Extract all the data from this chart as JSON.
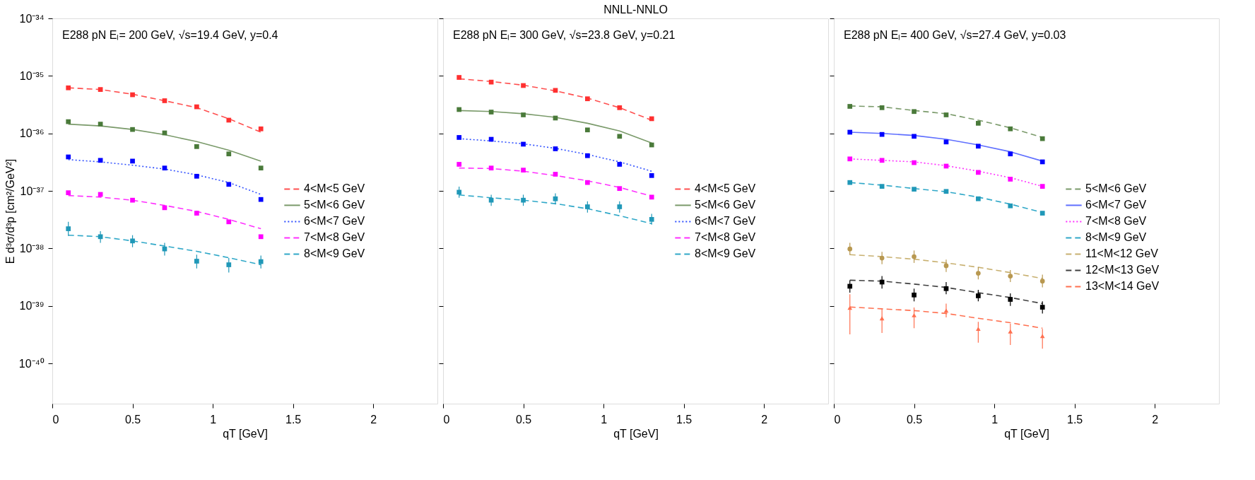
{
  "chart_data": [
    {
      "type": "line",
      "annotations": [
        "E288 pN Eₗ= 200 GeV, √s=19.4 GeV, y=0.4"
      ],
      "xlabel": "qT [GeV]",
      "ylabel": "E d³σ/d³p [cm²/GeV²]",
      "log": true,
      "legend": "right",
      "xlim": [
        0,
        2.4
      ],
      "xticks": [
        0,
        0.5,
        1,
        1.5,
        2
      ],
      "ylim": [
        2e-41,
        1e-34
      ],
      "yticks": [
        {
          "value": 1e-34,
          "label": "10⁻³⁴"
        },
        {
          "value": 1e-35,
          "label": "10⁻³⁵"
        },
        {
          "value": 1e-36,
          "label": "10⁻³⁶"
        },
        {
          "value": 1e-37,
          "label": "10⁻³⁷"
        },
        {
          "value": 1e-38,
          "label": "10⁻³⁸"
        },
        {
          "value": 1e-39,
          "label": "10⁻³⁹"
        },
        {
          "value": 1e-40,
          "label": "10⁻⁴⁰"
        }
      ],
      "x": [
        0.1,
        0.3,
        0.5,
        0.7,
        0.9,
        1.1,
        1.3
      ],
      "series": [
        {
          "name": "4<M<5 GeV",
          "type": "line",
          "color": "#ff5050",
          "line_style": "dashed",
          "values": [
            6.2e-36,
            5.8e-36,
            4.8e-36,
            3.7e-36,
            2.8e-36,
            1.8e-36,
            1.05e-36
          ]
        },
        {
          "name": "5<M<6 GeV",
          "type": "line",
          "color": "#7a9a6a",
          "line_style": "solid",
          "values": [
            1.45e-36,
            1.35e-36,
            1.17e-36,
            9.5e-37,
            7.2e-37,
            5.1e-37,
            3.3e-37
          ]
        },
        {
          "name": "6<M<7 GeV",
          "type": "line",
          "color": "#3050ff",
          "line_style": "dotted",
          "values": [
            3.5e-37,
            3.2e-37,
            2.8e-37,
            2.4e-37,
            1.9e-37,
            1.4e-37,
            8.7e-38
          ]
        },
        {
          "name": "7<M<8 GeV",
          "type": "line",
          "color": "#ff30ff",
          "line_style": "dashed",
          "values": [
            8.3e-38,
            7.8e-38,
            6.9e-38,
            5.6e-38,
            4.4e-38,
            3.2e-38,
            2.2e-38
          ]
        },
        {
          "name": "8<M<9 GeV",
          "type": "line",
          "color": "#30a8c8",
          "line_style": "dashed",
          "values": [
            1.7e-38,
            1.6e-38,
            1.35e-38,
            1.1e-38,
            8.9e-39,
            6.9e-39,
            5.2e-39
          ]
        },
        {
          "type": "scatter",
          "color": "#ff3030",
          "marker": "square",
          "values": [
            6.2e-36,
            5.8e-36,
            4.7e-36,
            3.7e-36,
            2.9e-36,
            1.7e-36,
            1.2e-36
          ]
        },
        {
          "type": "scatter",
          "color": "#4a7a3a",
          "marker": "square",
          "values": [
            1.6e-36,
            1.45e-36,
            1.17e-36,
            1.02e-36,
            5.9e-37,
            4.4e-37,
            2.5e-37
          ]
        },
        {
          "type": "scatter",
          "color": "#0000ff",
          "marker": "square",
          "values": [
            3.9e-37,
            3.4e-37,
            3.3e-37,
            2.5e-37,
            1.8e-37,
            1.3e-37,
            7.1e-38
          ]
        },
        {
          "type": "scatter",
          "color": "#ff00ff",
          "marker": "square",
          "values": [
            9.3e-38,
            8.7e-38,
            6.9e-38,
            5.1e-38,
            4.1e-38,
            2.9e-38,
            1.6e-38
          ]
        },
        {
          "type": "scatter",
          "color": "#2098b8",
          "marker": "square",
          "values": [
            2.2e-38,
            1.6e-38,
            1.35e-38,
            9.8e-39,
            6e-39,
            5.2e-39,
            5.9e-39
          ],
          "errors": [
            [
              1.65e-38,
              2.9e-38
            ],
            [
              1.25e-38,
              2e-38
            ],
            [
              1.05e-38,
              1.7e-38
            ],
            [
              7.5e-39,
              1.25e-38
            ],
            [
              4.5e-39,
              7.8e-39
            ],
            [
              3.8e-39,
              6.8e-39
            ],
            [
              4.5e-39,
              7.5e-39
            ]
          ]
        }
      ]
    },
    {
      "type": "line",
      "title": "NNLL-NNLO",
      "annotations": [
        "E288 pN Eₗ= 300 GeV, √s=23.8 GeV, y=0.21"
      ],
      "xlabel": "qT [GeV]",
      "log": true,
      "legend": "right",
      "tick_labels": "x",
      "xlim": [
        0,
        2.4
      ],
      "xticks": [
        0,
        0.5,
        1,
        1.5,
        2
      ],
      "ylim": [
        2e-41,
        1e-34
      ],
      "yticks": [
        {
          "value": 1e-34,
          "label": null
        },
        {
          "value": 1e-35,
          "label": null
        },
        {
          "value": 1e-36,
          "label": null
        },
        {
          "value": 1e-37,
          "label": null
        },
        {
          "value": 1e-38,
          "label": null
        },
        {
          "value": 1e-39,
          "label": null
        },
        {
          "value": 1e-40,
          "label": null
        }
      ],
      "x": [
        0.1,
        0.3,
        0.5,
        0.7,
        0.9,
        1.1,
        1.3
      ],
      "series": [
        {
          "name": "4<M<5 GeV",
          "type": "line",
          "color": "#ff5050",
          "line_style": "dashed",
          "values": [
            8.9e-36,
            8e-36,
            6.9e-36,
            5.5e-36,
            4.1e-36,
            2.8e-36,
            1.7e-36
          ]
        },
        {
          "name": "5<M<6 GeV",
          "type": "line",
          "color": "#7a9a6a",
          "line_style": "solid",
          "values": [
            2.5e-36,
            2.4e-36,
            2.2e-36,
            1.9e-36,
            1.5e-36,
            1.1e-36,
            6.8e-37
          ]
        },
        {
          "name": "6<M<7 GeV",
          "type": "line",
          "color": "#3050ff",
          "line_style": "dotted",
          "values": [
            8.1e-37,
            7.4e-37,
            6.6e-37,
            5.5e-37,
            4.3e-37,
            3.2e-37,
            2.2e-37
          ]
        },
        {
          "name": "7<M<8 GeV",
          "type": "line",
          "color": "#ff30ff",
          "line_style": "dashed",
          "values": [
            2.5e-37,
            2.45e-37,
            2.2e-37,
            1.85e-37,
            1.5e-37,
            1.15e-37,
            8.1e-38
          ]
        },
        {
          "name": "8<M<9 GeV",
          "type": "line",
          "color": "#30a8c8",
          "line_style": "dashed",
          "values": [
            8.5e-38,
            7.6e-38,
            6.9e-38,
            6e-38,
            4.9e-38,
            3.7e-38,
            2.7e-38
          ]
        },
        {
          "type": "scatter",
          "color": "#ff3030",
          "marker": "square",
          "values": [
            9.4e-36,
            7.8e-36,
            6.8e-36,
            5.6e-36,
            4e-36,
            2.8e-36,
            1.8e-36
          ]
        },
        {
          "type": "scatter",
          "color": "#4a7a3a",
          "marker": "square",
          "values": [
            2.6e-36,
            2.35e-36,
            2.1e-36,
            1.85e-36,
            1.15e-36,
            8.9e-37,
            6.3e-37
          ]
        },
        {
          "type": "scatter",
          "color": "#0000ff",
          "marker": "square",
          "values": [
            8.5e-37,
            7.9e-37,
            6.5e-37,
            5.4e-37,
            4.1e-37,
            2.9e-37,
            1.85e-37
          ]
        },
        {
          "type": "scatter",
          "color": "#ff00ff",
          "marker": "square",
          "values": [
            2.9e-37,
            2.5e-37,
            2.3e-37,
            1.95e-37,
            1.4e-37,
            1.1e-37,
            7.8e-38
          ]
        },
        {
          "type": "scatter",
          "color": "#2098b8",
          "marker": "square",
          "values": [
            9.5e-38,
            6.9e-38,
            6.9e-38,
            7.3e-38,
            5.3e-38,
            5.3e-38,
            3.2e-38
          ],
          "errors": [
            [
              7.6e-38,
              1.19e-37
            ],
            [
              5.5e-38,
              8.6e-38
            ],
            [
              5.5e-38,
              8.6e-38
            ],
            [
              5.8e-38,
              9.1e-38
            ],
            [
              4.2e-38,
              6.6e-38
            ],
            [
              4.2e-38,
              6.6e-38
            ],
            [
              2.6e-38,
              4e-38
            ]
          ]
        }
      ]
    },
    {
      "type": "line",
      "annotations": [
        "E288 pN Eₗ= 400 GeV, √s=27.4 GeV, y=0.03"
      ],
      "xlabel": "qT [GeV]",
      "log": true,
      "legend": "right",
      "tick_labels": "x",
      "xlim": [
        0,
        2.4
      ],
      "xticks": [
        0,
        0.5,
        1,
        1.5,
        2
      ],
      "ylim": [
        2e-41,
        1e-34
      ],
      "yticks": [
        {
          "value": 1e-34,
          "label": null
        },
        {
          "value": 1e-35,
          "label": null
        },
        {
          "value": 1e-36,
          "label": null
        },
        {
          "value": 1e-37,
          "label": null
        },
        {
          "value": 1e-38,
          "label": null
        },
        {
          "value": 1e-39,
          "label": null
        },
        {
          "value": 1e-40,
          "label": null
        }
      ],
      "x": [
        0.1,
        0.3,
        0.5,
        0.7,
        0.9,
        1.1,
        1.3
      ],
      "series": [
        {
          "name": "5<M<6 GeV",
          "type": "line",
          "color": "#7a9a6a",
          "line_style": "dashed",
          "values": [
            3e-36,
            2.9e-36,
            2.5e-36,
            2.2e-36,
            1.7e-36,
            1.25e-36,
            8.5e-37
          ]
        },
        {
          "name": "6<M<7 GeV",
          "type": "line",
          "color": "#6070ff",
          "line_style": "solid",
          "values": [
            1.05e-36,
            1e-36,
            9.2e-37,
            7.9e-37,
            6.3e-37,
            4.8e-37,
            3.3e-37
          ]
        },
        {
          "name": "7<M<8 GeV",
          "type": "line",
          "color": "#ff30ff",
          "line_style": "dotted",
          "values": [
            3.6e-37,
            3.4e-37,
            3.2e-37,
            2.75e-37,
            2.2e-37,
            1.7e-37,
            1.2e-37
          ]
        },
        {
          "name": "8<M<9 GeV",
          "type": "line",
          "color": "#30a8c8",
          "line_style": "dashed",
          "values": [
            1.4e-37,
            1.26e-37,
            1.1e-37,
            9.7e-38,
            7.8e-38,
            5.9e-38,
            4.2e-38
          ]
        },
        {
          "name": "11<M<12 GeV",
          "type": "line",
          "color": "#c8b070",
          "line_style": "dashed",
          "values": [
            7.8e-39,
            7.2e-39,
            6.5e-39,
            5.6e-39,
            4.7e-39,
            3.8e-39,
            3e-39
          ]
        },
        {
          "name": "12<M<13 GeV",
          "type": "line",
          "color": "#404040",
          "line_style": "dashed",
          "values": [
            2.8e-39,
            2.7e-39,
            2.4e-39,
            2.1e-39,
            1.7e-39,
            1.4e-39,
            1.1e-39
          ]
        },
        {
          "name": "13<M<14 GeV",
          "type": "line",
          "color": "#ff7050",
          "line_style": "dashed",
          "values": [
            9.6e-40,
            8.9e-40,
            8.3e-40,
            7.4e-40,
            6.1e-40,
            5.1e-40,
            4.1e-40
          ]
        },
        {
          "type": "scatter",
          "color": "#4a7a3a",
          "marker": "square",
          "values": [
            2.95e-36,
            2.8e-36,
            2.4e-36,
            2.1e-36,
            1.5e-36,
            1.2e-36,
            8.1e-37
          ]
        },
        {
          "type": "scatter",
          "color": "#0000ff",
          "marker": "square",
          "values": [
            1.05e-36,
            9.6e-37,
            8.9e-37,
            7.1e-37,
            6e-37,
            4.4e-37,
            3.2e-37
          ]
        },
        {
          "type": "scatter",
          "color": "#ff00ff",
          "marker": "square",
          "values": [
            3.6e-37,
            3.4e-37,
            3.1e-37,
            2.7e-37,
            2.1e-37,
            1.6e-37,
            1.2e-37
          ]
        },
        {
          "type": "scatter",
          "color": "#2098b8",
          "marker": "square",
          "values": [
            1.4e-37,
            1.2e-37,
            1.07e-37,
            9.8e-38,
            7.3e-38,
            5.5e-38,
            4.1e-38
          ]
        },
        {
          "type": "scatter",
          "color": "#b89850",
          "marker": "circle",
          "values": [
            9.8e-39,
            6.8e-39,
            7.2e-39,
            5e-39,
            3.7e-39,
            3.3e-39,
            2.7e-39
          ],
          "errors": [
            [
              7.7e-39,
              1.25e-38
            ],
            [
              5.3e-39,
              8.7e-39
            ],
            [
              5.6e-39,
              9.2e-39
            ],
            [
              3.9e-39,
              6.4e-39
            ],
            [
              2.9e-39,
              4.7e-39
            ],
            [
              2.6e-39,
              4.2e-39
            ],
            [
              2.1e-39,
              3.5e-39
            ]
          ]
        },
        {
          "type": "scatter",
          "color": "#000000",
          "marker": "square",
          "values": [
            2.2e-39,
            2.6e-39,
            1.55e-39,
            2e-39,
            1.5e-39,
            1.3e-39,
            9.5e-40
          ],
          "errors": [
            [
              1.7e-39,
              2.8e-39
            ],
            [
              2e-39,
              3.3e-39
            ],
            [
              1.2e-39,
              2e-39
            ],
            [
              1.6e-39,
              2.6e-39
            ],
            [
              1.2e-39,
              1.9e-39
            ],
            [
              1e-39,
              1.65e-39
            ],
            [
              7.4e-40,
              1.2e-39
            ]
          ]
        },
        {
          "type": "scatter",
          "color": "#ff7050",
          "marker": "triangle",
          "values": [
            9.3e-40,
            6.1e-40,
            6.9e-40,
            8.3e-40,
            4e-40,
            3.6e-40,
            3e-40
          ],
          "errors": [
            [
              3.2e-40,
              1.6e-39
            ],
            [
              3.4e-40,
              8.8e-40
            ],
            [
              4.1e-40,
              9.4e-40
            ],
            [
              6.3e-40,
              1.1e-39
            ],
            [
              2.3e-40,
              5.3e-40
            ],
            [
              2.1e-40,
              4.9e-40
            ],
            [
              1.8e-40,
              4e-40
            ]
          ]
        }
      ]
    }
  ]
}
